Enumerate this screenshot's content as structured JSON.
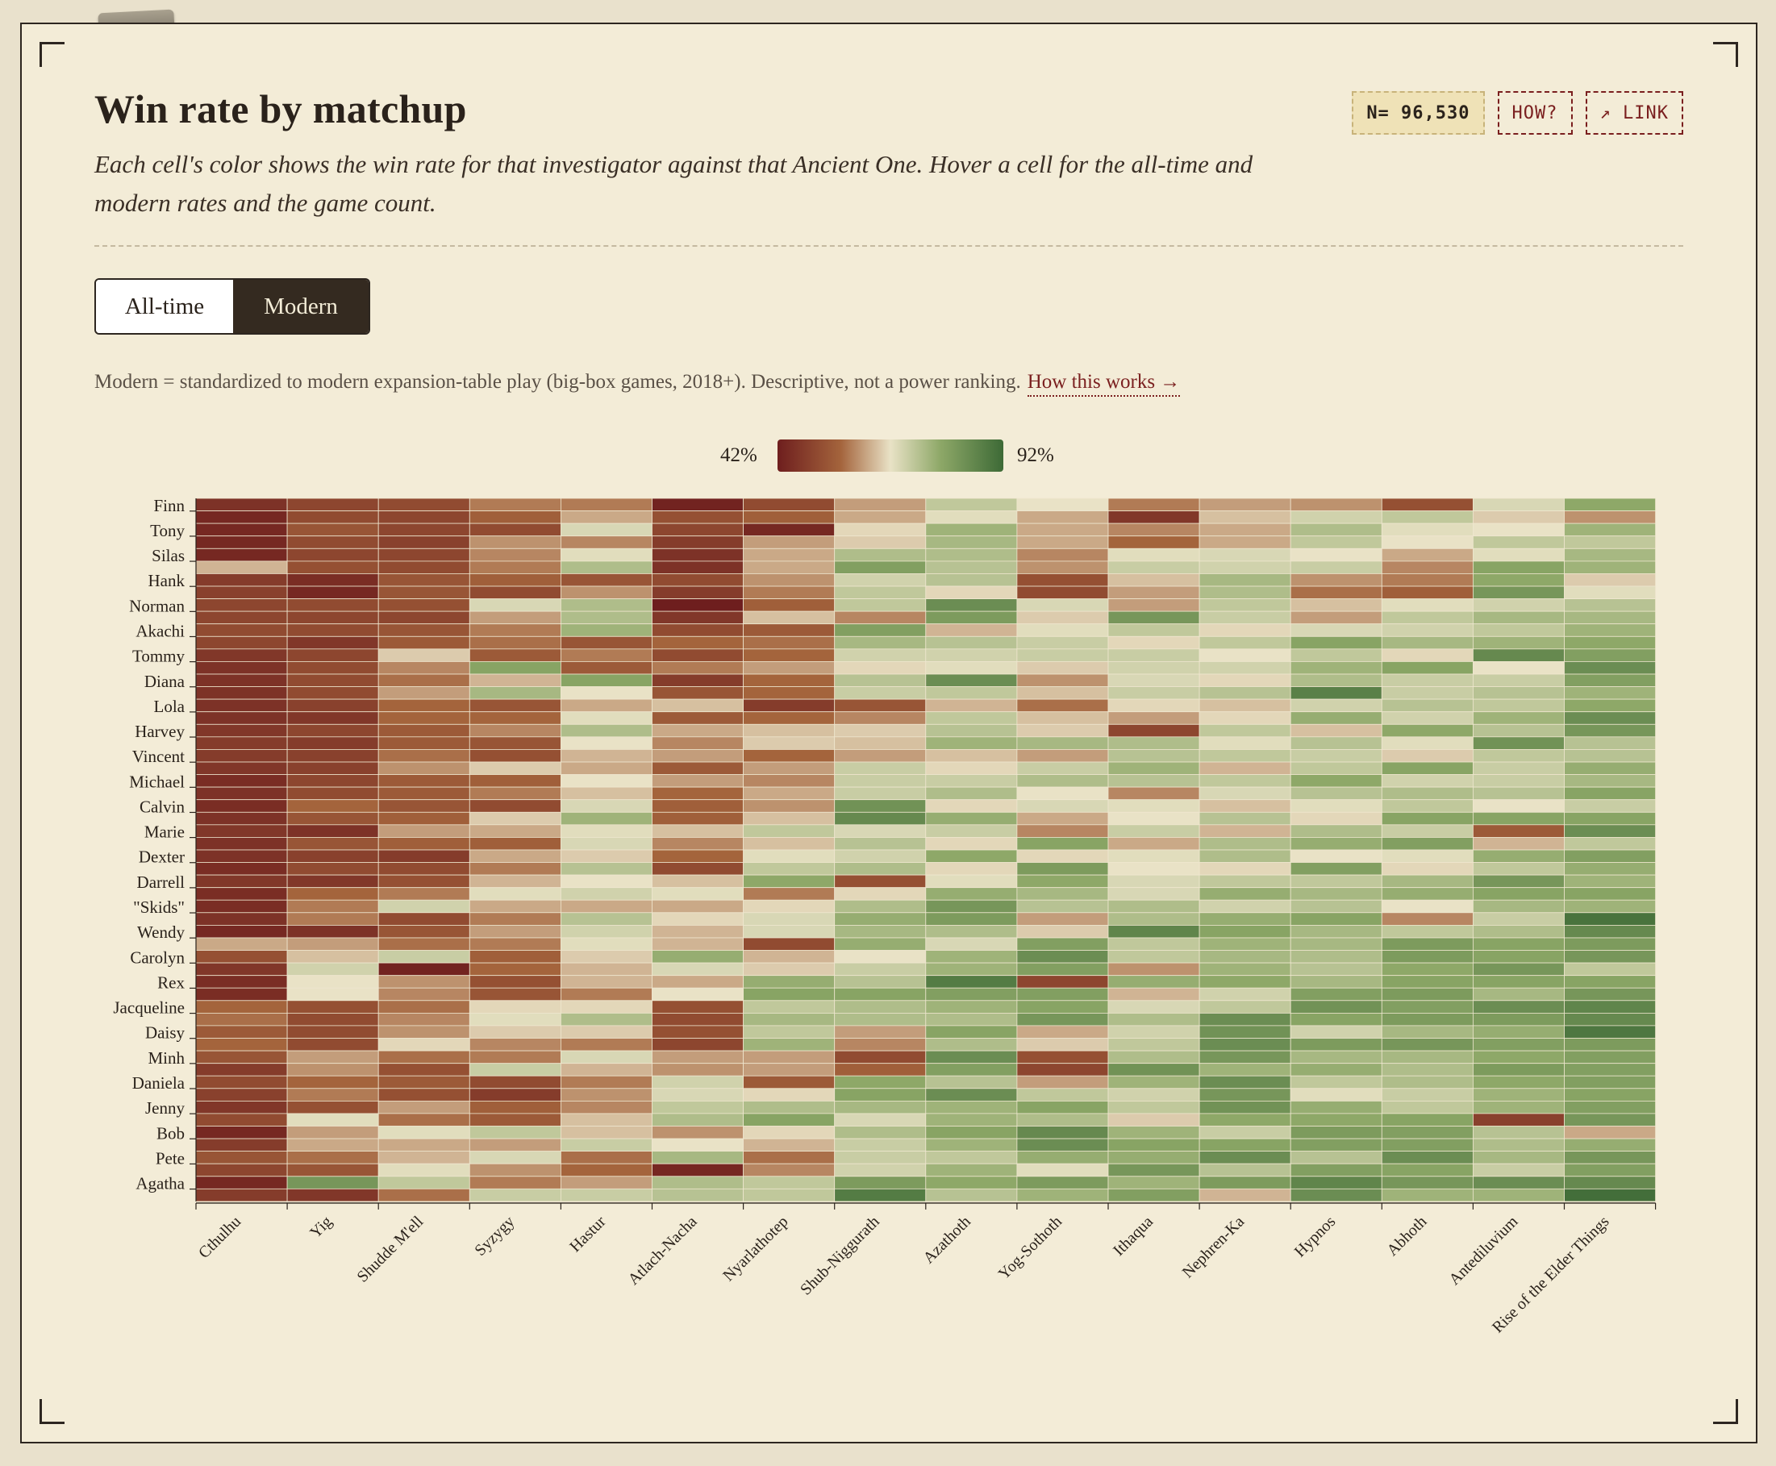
{
  "header": {
    "title": "Win rate by matchup",
    "subtitle": "Each cell's color shows the win rate for that investigator against that Ancient One. Hover a cell for the all-time and modern rates and the game count."
  },
  "chips": {
    "n_label": "N= 96,530",
    "how_label": "HOW?",
    "link_label": "↗ LINK"
  },
  "toggle": {
    "options": [
      "All-time",
      "Modern"
    ],
    "selected": "Modern"
  },
  "note": {
    "text": "Modern = standardized to modern expansion-table play (big-box games, 2018+). Descriptive, not a power ranking.",
    "link_label": "How this works →"
  },
  "colors": {
    "low": "#6e1e1e",
    "mid": "#e9e2c6",
    "high": "#3d6a36"
  },
  "chart_data": {
    "type": "heatmap",
    "legend_min": "42%",
    "legend_max": "92%",
    "value_range": [
      42,
      92
    ],
    "x_ticks": [
      "Cthulhu",
      "Yig",
      "Shudde M'ell",
      "Syzygy",
      "Hastur",
      "Atlach-Nacha",
      "Nyarlathotep",
      "Shub-Niggurath",
      "Azathoth",
      "Yog-Sothoth",
      "Ithaqua",
      "Nephren-Ka",
      "Hypnos",
      "Abhoth",
      "Antediluvium",
      "Rise of the Elder Things"
    ],
    "y_ticks": [
      "Finn",
      "Tony",
      "Silas",
      "Hank",
      "Norman",
      "Akachi",
      "Tommy",
      "Diana",
      "Lola",
      "Harvey",
      "Vincent",
      "Michael",
      "Calvin",
      "Marie",
      "Dexter",
      "Darrell",
      "\"Skids\"",
      "Wendy",
      "Carolyn",
      "Rex",
      "Jacqueline",
      "Daisy",
      "Minh",
      "Daniela",
      "Jenny",
      "Bob",
      "Pete",
      "Agatha"
    ],
    "columns": [
      "Cthulhu",
      "Yig",
      "Shudde M'ell",
      "Syzygy",
      "Hastur",
      "Atlach-Nacha",
      "Nyarlathotep",
      "Shub-Niggurath",
      "Azathoth",
      "Yog-Sothoth",
      "Ithaqua",
      "Nephren-Ka",
      "Hypnos",
      "Abhoth",
      "Antediluvium",
      "Rise of the Elder Things"
    ],
    "rows": [
      "Finn",
      "",
      "Tony",
      "",
      "Silas",
      "",
      "Hank",
      "",
      "Norman",
      "",
      "Akachi",
      "",
      "Tommy",
      "",
      "Diana",
      "",
      "Lola",
      "",
      "Harvey",
      "",
      "Vincent",
      "",
      "Michael",
      "",
      "Calvin",
      "",
      "Marie",
      "",
      "Dexter",
      "",
      "Darrell",
      "",
      "\"Skids\"",
      "",
      "Wendy",
      "",
      "Carolyn",
      "",
      "Rex",
      "",
      "Jacqueline",
      "",
      "Daisy",
      "",
      "Minh",
      "",
      "Daniela",
      "",
      "Jenny",
      "",
      "Bob",
      "",
      "Pete",
      "",
      "Agatha",
      ""
    ],
    "values": [
      [
        46,
        50,
        51,
        58,
        58,
        43,
        51,
        61,
        72,
        67,
        58,
        61,
        60,
        52,
        69,
        78
      ],
      [
        44,
        51,
        50,
        55,
        62,
        52,
        55,
        62,
        68,
        62,
        47,
        64,
        70,
        72,
        65,
        60
      ],
      [
        44,
        53,
        50,
        51,
        69,
        50,
        44,
        66,
        76,
        62,
        59,
        62,
        74,
        68,
        67,
        76
      ],
      [
        44,
        51,
        49,
        60,
        59,
        48,
        61,
        65,
        75,
        62,
        56,
        62,
        72,
        67,
        72,
        72
      ],
      [
        44,
        50,
        50,
        59,
        68,
        46,
        62,
        74,
        74,
        59,
        68,
        69,
        67,
        62,
        68,
        75
      ],
      [
        63,
        52,
        51,
        58,
        74,
        46,
        62,
        80,
        73,
        60,
        71,
        70,
        71,
        59,
        79,
        76
      ],
      [
        48,
        45,
        53,
        55,
        53,
        51,
        60,
        70,
        73,
        52,
        64,
        75,
        60,
        58,
        78,
        65
      ],
      [
        49,
        44,
        53,
        51,
        60,
        48,
        58,
        72,
        66,
        51,
        61,
        74,
        57,
        55,
        82,
        68
      ],
      [
        50,
        51,
        52,
        69,
        74,
        42,
        55,
        72,
        84,
        69,
        61,
        72,
        64,
        68,
        70,
        73
      ],
      [
        50,
        50,
        50,
        61,
        74,
        47,
        64,
        59,
        81,
        65,
        82,
        71,
        61,
        72,
        75,
        75
      ],
      [
        51,
        51,
        53,
        58,
        76,
        51,
        54,
        80,
        63,
        68,
        72,
        66,
        69,
        70,
        72,
        76
      ],
      [
        50,
        47,
        54,
        57,
        53,
        56,
        57,
        75,
        73,
        71,
        66,
        72,
        79,
        75,
        76,
        78
      ],
      [
        47,
        50,
        65,
        54,
        58,
        51,
        56,
        70,
        70,
        71,
        71,
        67,
        72,
        66,
        85,
        80
      ],
      [
        46,
        51,
        59,
        79,
        54,
        58,
        61,
        66,
        68,
        65,
        70,
        70,
        76,
        79,
        67,
        84
      ],
      [
        46,
        51,
        57,
        63,
        79,
        48,
        56,
        73,
        84,
        60,
        69,
        66,
        74,
        71,
        71,
        80
      ],
      [
        46,
        51,
        61,
        75,
        67,
        53,
        56,
        71,
        72,
        64,
        71,
        73,
        87,
        71,
        73,
        76
      ],
      [
        46,
        49,
        56,
        53,
        62,
        64,
        48,
        53,
        63,
        57,
        66,
        64,
        70,
        73,
        72,
        78
      ],
      [
        46,
        47,
        56,
        56,
        68,
        54,
        56,
        59,
        72,
        64,
        61,
        66,
        77,
        70,
        76,
        84
      ],
      [
        47,
        50,
        54,
        59,
        74,
        62,
        64,
        65,
        73,
        65,
        50,
        72,
        64,
        78,
        73,
        82
      ],
      [
        48,
        48,
        54,
        53,
        67,
        59,
        65,
        64,
        76,
        75,
        74,
        68,
        73,
        68,
        83,
        73
      ],
      [
        48,
        49,
        57,
        52,
        63,
        61,
        56,
        61,
        64,
        61,
        73,
        72,
        71,
        65,
        72,
        73
      ],
      [
        47,
        49,
        60,
        65,
        62,
        54,
        61,
        71,
        66,
        71,
        76,
        63,
        72,
        79,
        71,
        77
      ],
      [
        45,
        50,
        54,
        55,
        67,
        61,
        59,
        71,
        71,
        74,
        73,
        72,
        78,
        70,
        71,
        75
      ],
      [
        46,
        51,
        54,
        58,
        64,
        56,
        62,
        71,
        74,
        67,
        59,
        69,
        73,
        74,
        73,
        79
      ],
      [
        45,
        56,
        53,
        51,
        69,
        55,
        60,
        83,
        66,
        69,
        68,
        64,
        68,
        72,
        67,
        71
      ],
      [
        46,
        53,
        55,
        65,
        76,
        55,
        64,
        85,
        77,
        62,
        67,
        73,
        66,
        79,
        79,
        79
      ],
      [
        47,
        46,
        61,
        62,
        68,
        64,
        72,
        69,
        71,
        59,
        71,
        63,
        74,
        71,
        54,
        84
      ],
      [
        46,
        53,
        55,
        55,
        69,
        59,
        64,
        73,
        66,
        79,
        62,
        74,
        77,
        80,
        63,
        72
      ],
      [
        46,
        49,
        48,
        62,
        65,
        56,
        68,
        70,
        78,
        66,
        68,
        74,
        67,
        68,
        77,
        80
      ],
      [
        45,
        51,
        51,
        58,
        73,
        51,
        72,
        74,
        66,
        81,
        67,
        66,
        80,
        66,
        72,
        77
      ],
      [
        47,
        47,
        52,
        63,
        67,
        64,
        78,
        52,
        68,
        78,
        69,
        72,
        72,
        75,
        82,
        76
      ],
      [
        45,
        56,
        58,
        68,
        70,
        68,
        58,
        66,
        77,
        75,
        69,
        77,
        75,
        77,
        79,
        79
      ],
      [
        45,
        58,
        70,
        62,
        62,
        62,
        66,
        74,
        82,
        73,
        74,
        70,
        73,
        67,
        75,
        76
      ],
      [
        46,
        58,
        51,
        58,
        73,
        66,
        69,
        77,
        81,
        61,
        74,
        77,
        79,
        59,
        71,
        90
      ],
      [
        44,
        46,
        53,
        61,
        70,
        63,
        69,
        75,
        74,
        65,
        86,
        79,
        75,
        72,
        74,
        85
      ],
      [
        62,
        61,
        57,
        58,
        68,
        63,
        51,
        77,
        69,
        80,
        72,
        76,
        75,
        81,
        79,
        81
      ],
      [
        52,
        64,
        71,
        55,
        65,
        77,
        63,
        67,
        76,
        84,
        72,
        75,
        74,
        81,
        79,
        82
      ],
      [
        47,
        70,
        43,
        56,
        63,
        69,
        65,
        71,
        76,
        80,
        60,
        76,
        73,
        78,
        82,
        72
      ],
      [
        45,
        67,
        60,
        52,
        63,
        62,
        77,
        73,
        88,
        50,
        77,
        78,
        75,
        79,
        79,
        79
      ],
      [
        45,
        67,
        59,
        53,
        58,
        67,
        79,
        79,
        80,
        80,
        63,
        70,
        80,
        81,
        75,
        82
      ],
      [
        56,
        52,
        57,
        66,
        66,
        52,
        72,
        74,
        76,
        79,
        69,
        72,
        83,
        80,
        84,
        86
      ],
      [
        57,
        51,
        59,
        68,
        74,
        51,
        75,
        74,
        74,
        82,
        74,
        84,
        79,
        81,
        81,
        85
      ],
      [
        54,
        51,
        60,
        65,
        65,
        52,
        72,
        61,
        79,
        62,
        70,
        83,
        70,
        75,
        77,
        89
      ],
      [
        56,
        51,
        66,
        59,
        58,
        50,
        76,
        59,
        74,
        65,
        72,
        84,
        81,
        82,
        80,
        81
      ],
      [
        53,
        61,
        57,
        58,
        69,
        61,
        61,
        51,
        84,
        52,
        74,
        82,
        75,
        75,
        78,
        80
      ],
      [
        48,
        60,
        52,
        71,
        63,
        60,
        61,
        55,
        80,
        50,
        83,
        76,
        77,
        74,
        81,
        80
      ],
      [
        51,
        56,
        54,
        51,
        58,
        70,
        54,
        78,
        73,
        61,
        76,
        84,
        72,
        74,
        78,
        80
      ],
      [
        49,
        58,
        52,
        48,
        60,
        69,
        66,
        79,
        84,
        72,
        70,
        82,
        68,
        71,
        76,
        79
      ],
      [
        47,
        52,
        61,
        55,
        59,
        72,
        74,
        75,
        76,
        79,
        72,
        83,
        77,
        72,
        76,
        80
      ],
      [
        51,
        68,
        57,
        54,
        64,
        74,
        79,
        69,
        76,
        74,
        65,
        78,
        78,
        79,
        49,
        82
      ],
      [
        44,
        61,
        68,
        72,
        64,
        60,
        66,
        74,
        79,
        85,
        76,
        71,
        81,
        80,
        73,
        62
      ],
      [
        48,
        62,
        62,
        61,
        71,
        67,
        63,
        71,
        76,
        84,
        79,
        79,
        80,
        80,
        74,
        77
      ],
      [
        53,
        57,
        63,
        69,
        57,
        75,
        57,
        71,
        72,
        77,
        77,
        84,
        73,
        84,
        75,
        82
      ],
      [
        50,
        53,
        68,
        60,
        56,
        44,
        59,
        70,
        76,
        68,
        82,
        73,
        80,
        79,
        71,
        80
      ],
      [
        44,
        82,
        72,
        58,
        61,
        74,
        72,
        81,
        78,
        81,
        76,
        81,
        86,
        82,
        84,
        85
      ],
      [
        48,
        47,
        57,
        71,
        71,
        73,
        72,
        88,
        73,
        76,
        80,
        63,
        84,
        76,
        76,
        91
      ]
    ]
  }
}
